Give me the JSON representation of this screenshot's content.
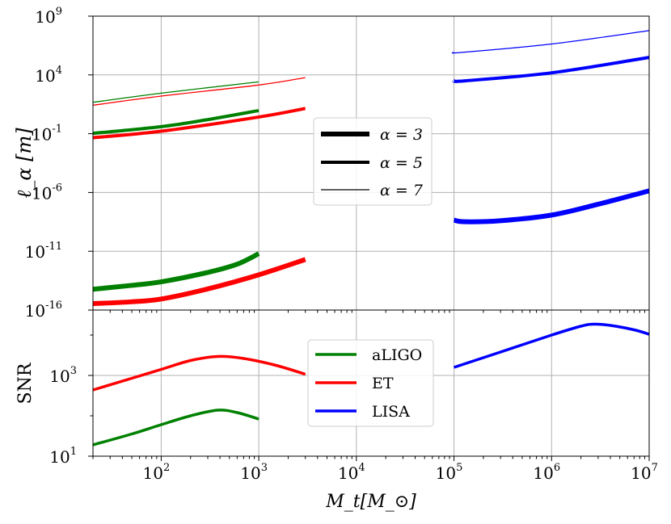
{
  "chart_data": [
    {
      "type": "line",
      "panel": "top",
      "ylabel": "ℓ_α [m]",
      "yscale": "log",
      "xscale": "log",
      "xlim": [
        20,
        10000000
      ],
      "ylim_log10": [
        -16,
        9
      ],
      "yticks": [
        "10^-16",
        "10^-11",
        "10^-6",
        "10^-1",
        "10^4",
        "10^9"
      ],
      "ytick_exponents": [
        -16,
        -11,
        -6,
        -1,
        4,
        9
      ],
      "grid": true,
      "legend": {
        "placement": "center",
        "entries": [
          {
            "label": "α = 3",
            "linewidth_rank": 3
          },
          {
            "label": "α = 5",
            "linewidth_rank": 2
          },
          {
            "label": "α = 7",
            "linewidth_rank": 1
          }
        ]
      },
      "series": [
        {
          "name": "aLIGO α=3",
          "detector": "aLIGO",
          "alpha": 3,
          "x": [
            20,
            50,
            100,
            300,
            600,
            1000
          ],
          "y_log10": [
            -14.23,
            -13.9,
            -13.6,
            -12.8,
            -12.1,
            -11.2
          ]
        },
        {
          "name": "ET α=3",
          "detector": "ET",
          "alpha": 3,
          "x": [
            20,
            50,
            100,
            300,
            1000,
            3000
          ],
          "y_log10": [
            -15.45,
            -15.3,
            -15.06,
            -14.2,
            -13.0,
            -11.7
          ]
        },
        {
          "name": "LISA α=3",
          "detector": "LISA",
          "alpha": 3,
          "x": [
            100000,
            130000,
            300000,
            1000000,
            3000000,
            10000000
          ],
          "y_log10": [
            -8.35,
            -8.49,
            -8.4,
            -7.92,
            -7.0,
            -5.86
          ]
        },
        {
          "name": "aLIGO α=5",
          "detector": "aLIGO",
          "alpha": 5,
          "x": [
            20,
            100,
            300,
            1000
          ],
          "y_log10": [
            -0.97,
            -0.4,
            0.2,
            0.97
          ]
        },
        {
          "name": "ET α=5",
          "detector": "ET",
          "alpha": 5,
          "x": [
            20,
            100,
            1000,
            3000
          ],
          "y_log10": [
            -1.34,
            -0.79,
            0.42,
            1.15
          ]
        },
        {
          "name": "LISA α=5",
          "detector": "LISA",
          "alpha": 5,
          "x": [
            100000,
            130000,
            1000000,
            10000000
          ],
          "y_log10": [
            3.5,
            3.5,
            4.18,
            5.49
          ]
        },
        {
          "name": "aLIGO α=7",
          "detector": "aLIGO",
          "alpha": 7,
          "x": [
            20,
            100,
            1000
          ],
          "y_log10": [
            1.67,
            2.45,
            3.41
          ]
        },
        {
          "name": "ET α=7",
          "detector": "ET",
          "alpha": 7,
          "x": [
            20,
            100,
            1000,
            3000
          ],
          "y_log10": [
            1.42,
            2.2,
            3.14,
            3.77
          ]
        },
        {
          "name": "LISA α=7",
          "detector": "LISA",
          "alpha": 7,
          "x": [
            100000,
            120000,
            1000000,
            10000000
          ],
          "y_log10": [
            5.92,
            5.92,
            6.63,
            7.77
          ]
        }
      ]
    },
    {
      "type": "line",
      "panel": "bottom",
      "ylabel": "SNR",
      "xlabel": "M_t[M_⊙]",
      "yscale": "log",
      "xscale": "log",
      "xlim": [
        20,
        10000000
      ],
      "ylim_log10": [
        1,
        4.62
      ],
      "yticks": [
        "10^1",
        "10^3"
      ],
      "ytick_exponents": [
        1,
        3
      ],
      "xticks": [
        "10^2",
        "10^3",
        "10^4",
        "10^5",
        "10^6",
        "10^7"
      ],
      "xtick_exponents": [
        2,
        3,
        4,
        5,
        6,
        7
      ],
      "grid": true,
      "legend": {
        "placement": "center",
        "entries": [
          {
            "label": "aLIGO"
          },
          {
            "label": "ET"
          },
          {
            "label": "LISA"
          }
        ]
      },
      "series": [
        {
          "name": "aLIGO",
          "x": [
            20,
            50,
            100,
            200,
            380,
            600,
            1000
          ],
          "y_log10": [
            1.28,
            1.55,
            1.78,
            2.0,
            2.14,
            2.08,
            1.92
          ]
        },
        {
          "name": "ET",
          "x": [
            20,
            50,
            100,
            200,
            380,
            700,
            1500,
            3000
          ],
          "y_log10": [
            2.64,
            2.93,
            3.15,
            3.37,
            3.47,
            3.42,
            3.25,
            3.03
          ]
        },
        {
          "name": "LISA",
          "x": [
            100000,
            300000,
            1000000,
            2000000,
            2700000,
            4000000,
            7000000,
            10000000
          ],
          "y_log10": [
            3.2,
            3.58,
            4.0,
            4.22,
            4.27,
            4.24,
            4.13,
            4.02
          ]
        }
      ]
    }
  ],
  "colors": {
    "aLIGO": "#008000",
    "ET": "#ff0000",
    "LISA": "#0000ff",
    "grid": "#b0b0b0"
  },
  "linewidths_by_alpha": {
    "3": 6,
    "5": 4,
    "7": 1.3
  }
}
